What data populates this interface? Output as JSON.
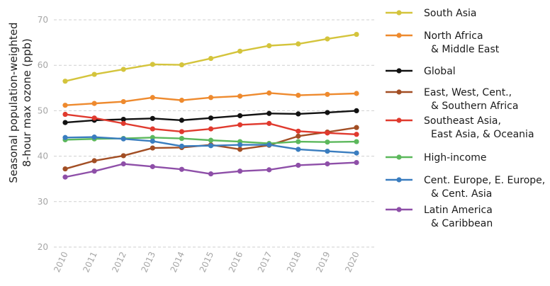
{
  "chart_data": {
    "type": "line",
    "title": "",
    "xlabel": "",
    "ylabel_lines": [
      "Seasonal population-weighted",
      "8-hour max ozone (ppb)"
    ],
    "ylim": [
      20,
      70
    ],
    "yticks": [
      20,
      30,
      40,
      50,
      60,
      70
    ],
    "x": [
      "2010",
      "2011",
      "2012",
      "2013",
      "2014",
      "2015",
      "2016",
      "2017",
      "2018",
      "2019",
      "2020"
    ],
    "grid": "horizontal-dashed",
    "legend_position": "right",
    "series": [
      {
        "name": "South Asia",
        "label_lines": [
          "South Asia"
        ],
        "color": "#d4c43c",
        "values": [
          56.5,
          58.0,
          59.1,
          60.2,
          60.1,
          61.5,
          63.1,
          64.3,
          64.7,
          65.8,
          66.8
        ]
      },
      {
        "name": "North Africa & Middle East",
        "label_lines": [
          "North Africa",
          "& Middle East"
        ],
        "color": "#ee8a2e",
        "values": [
          51.2,
          51.6,
          52.0,
          52.9,
          52.3,
          52.9,
          53.2,
          53.9,
          53.4,
          53.6,
          53.8
        ]
      },
      {
        "name": "Global",
        "label_lines": [
          "Global"
        ],
        "color": "#111111",
        "values": [
          47.4,
          47.9,
          48.1,
          48.3,
          47.9,
          48.4,
          48.9,
          49.4,
          49.3,
          49.6,
          50.0
        ]
      },
      {
        "name": "East, West, Cent., & Southern Africa",
        "label_lines": [
          "East, West, Cent.,",
          "& Southern Africa"
        ],
        "color": "#a24e24",
        "values": [
          37.2,
          39.0,
          40.1,
          41.8,
          41.9,
          42.5,
          41.5,
          42.4,
          44.4,
          45.3,
          46.3
        ]
      },
      {
        "name": "Southeast Asia, East Asia, & Oceania",
        "label_lines": [
          "Southeast Asia,",
          "East Asia, & Oceania"
        ],
        "color": "#e03a2e",
        "values": [
          49.2,
          48.4,
          47.2,
          46.0,
          45.4,
          46.0,
          46.9,
          47.2,
          45.5,
          45.1,
          44.8
        ]
      },
      {
        "name": "High-income",
        "label_lines": [
          "High-income"
        ],
        "color": "#5cb85c",
        "values": [
          43.6,
          43.8,
          43.9,
          44.1,
          43.9,
          43.5,
          43.2,
          42.8,
          43.2,
          43.1,
          43.2
        ]
      },
      {
        "name": "Cent. Europe, E. Europe, & Cent. Asia",
        "label_lines": [
          "Cent. Europe, E. Europe,",
          "& Cent. Asia"
        ],
        "color": "#3a7dbf",
        "values": [
          44.1,
          44.2,
          43.8,
          43.3,
          42.2,
          42.3,
          42.5,
          42.5,
          41.5,
          41.1,
          40.7
        ]
      },
      {
        "name": "Latin America & Caribbean",
        "label_lines": [
          "Latin America",
          "& Caribbean"
        ],
        "color": "#8e4fa8",
        "values": [
          35.4,
          36.7,
          38.3,
          37.7,
          37.1,
          36.1,
          36.7,
          37.0,
          38.0,
          38.3,
          38.6
        ]
      }
    ]
  }
}
